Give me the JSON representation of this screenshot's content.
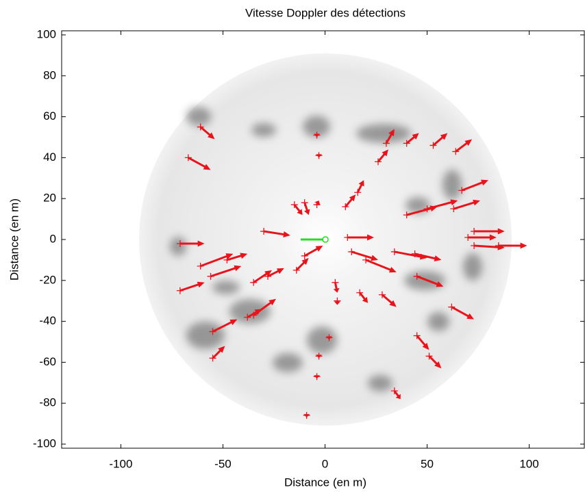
{
  "chart_data": {
    "type": "quiver",
    "title": "Vitesse Doppler des détections",
    "xlabel": "Distance (en m)",
    "ylabel": "Distance (en m)",
    "xlim": [
      -129,
      127
    ],
    "ylim": [
      -102,
      102
    ],
    "xticks": [
      -100,
      -50,
      0,
      50,
      100
    ],
    "yticks": [
      -100,
      -80,
      -60,
      -40,
      -20,
      0,
      20,
      40,
      60,
      80,
      100
    ],
    "color": "#e8141c",
    "x": [
      -61,
      -67,
      -4,
      -3,
      30,
      26,
      40,
      53,
      64,
      67,
      50,
      63,
      40,
      70,
      73,
      73,
      85,
      11,
      13,
      20,
      34,
      44,
      45,
      62,
      28,
      17,
      45,
      51,
      34,
      5,
      6,
      2,
      -3,
      -4,
      -9,
      -55,
      -55,
      -38,
      -35,
      -71,
      -56,
      -61,
      -48,
      -35,
      -28,
      -14,
      -10,
      -71,
      -30,
      -15,
      -10,
      -4,
      10,
      16
    ],
    "y": [
      55,
      40,
      51,
      41,
      47,
      38,
      47,
      46,
      43,
      24,
      15,
      15,
      12,
      1,
      4,
      -3,
      -3,
      1,
      -6,
      -10,
      -6,
      -7,
      -18,
      -33,
      -27,
      -26,
      -47,
      -57,
      -74,
      -21,
      -30,
      -48,
      -57,
      -67,
      -86,
      -58,
      -45,
      -38,
      -37,
      -25,
      -18,
      -13,
      -10,
      -21,
      -18,
      -15,
      -8,
      -2,
      4,
      17,
      18,
      17,
      16,
      23
    ],
    "u": [
      7,
      11,
      0,
      0,
      4,
      5,
      6,
      7,
      8,
      13,
      15,
      13,
      15,
      14,
      15,
      15,
      14,
      13,
      13,
      15,
      16,
      13,
      13,
      11,
      7,
      4,
      6,
      6,
      3,
      1,
      0,
      0,
      0,
      0,
      0,
      6,
      12,
      7,
      11,
      12,
      15,
      16,
      10,
      9,
      8,
      6,
      9,
      12,
      13,
      4,
      2,
      1,
      5,
      3
    ],
    "v": [
      -6,
      -6,
      -1,
      -1,
      7,
      6,
      5,
      6,
      6,
      5,
      4,
      4,
      4,
      0,
      0,
      -1,
      0,
      0,
      -4,
      -6,
      -3,
      -3,
      -5,
      -6,
      -6,
      -5,
      -7,
      -6,
      -4,
      -5,
      -2,
      -1,
      -1,
      -1,
      -1,
      6,
      6,
      4,
      8,
      4,
      5,
      6,
      3,
      6,
      4,
      6,
      5,
      0,
      -2,
      -5,
      -6,
      2,
      6,
      6
    ]
  }
}
